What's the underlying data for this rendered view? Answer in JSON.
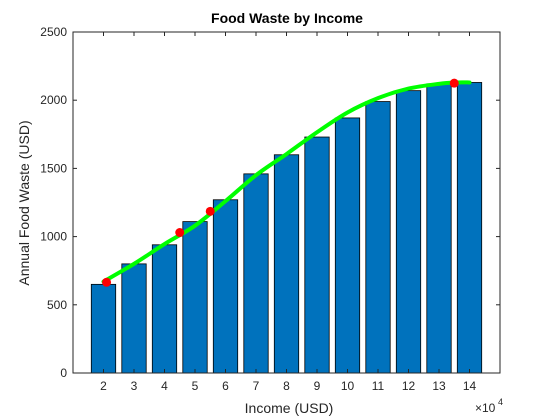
{
  "colors": {
    "bar": "#0072BD",
    "trend": "#00FF00",
    "marker": "#FF0000"
  },
  "chart_data": {
    "type": "bar",
    "title": "Food Waste by Income",
    "xlabel": "Income (USD)",
    "ylabel": "Annual Food Waste (USD)",
    "x_multiplier": {
      "base": "×10",
      "exponent": "4"
    },
    "categories": [
      "2",
      "3",
      "4",
      "5",
      "6",
      "7",
      "8",
      "9",
      "10",
      "11",
      "12",
      "13",
      "14"
    ],
    "x": [
      2,
      3,
      4,
      5,
      6,
      7,
      8,
      9,
      10,
      11,
      12,
      13,
      14
    ],
    "values": [
      650,
      800,
      940,
      1110,
      1270,
      1460,
      1600,
      1730,
      1870,
      1990,
      2070,
      2120,
      2130
    ],
    "ylim": [
      0,
      2500
    ],
    "yticks": [
      0,
      500,
      1000,
      1500,
      2000,
      2500
    ],
    "xlim": [
      1,
      15
    ],
    "grid": false,
    "legend": "none",
    "trend_line": {
      "x": [
        2,
        3,
        4,
        5,
        6,
        7,
        8,
        9,
        10,
        11,
        12,
        13,
        13.6,
        14
      ],
      "y": [
        670,
        800,
        945,
        1080,
        1260,
        1450,
        1605,
        1765,
        1910,
        2015,
        2085,
        2120,
        2130,
        2130
      ]
    },
    "highlighted_points": {
      "x": [
        2.1,
        4.5,
        5.5,
        13.5
      ],
      "y": [
        665,
        1030,
        1185,
        2125
      ]
    }
  }
}
